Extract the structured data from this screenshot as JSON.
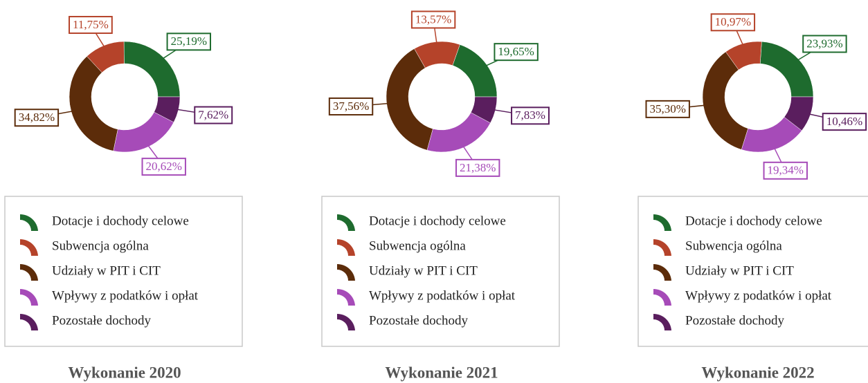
{
  "chart_data": [
    {
      "type": "donut",
      "title": "Wykonanie 2020",
      "categories": [
        "Dotacje i dochody celowe",
        "Subwencja ogólna",
        "Udziały w PIT i CIT",
        "Wpływy z podatków i opłat",
        "Pozostałe dochody"
      ],
      "values": [
        25.19,
        11.75,
        34.82,
        20.62,
        7.62
      ],
      "value_labels": [
        "25,19%",
        "11,75%",
        "34,82%",
        "20,62%",
        "7,62%"
      ],
      "colors": [
        "#1e6b2e",
        "#b5432a",
        "#5c2c0a",
        "#a64bb8",
        "#5a1e5e"
      ]
    },
    {
      "type": "donut",
      "title": "Wykonanie 2021",
      "categories": [
        "Dotacje i dochody celowe",
        "Subwencja ogólna",
        "Udziały w PIT i CIT",
        "Wpływy z podatków i opłat",
        "Pozostałe dochody"
      ],
      "values": [
        19.65,
        13.57,
        37.56,
        21.38,
        7.83
      ],
      "value_labels": [
        "19,65%",
        "13,57%",
        "37,56%",
        "21,38%",
        "7,83%"
      ],
      "colors": [
        "#1e6b2e",
        "#b5432a",
        "#5c2c0a",
        "#a64bb8",
        "#5a1e5e"
      ]
    },
    {
      "type": "donut",
      "title": "Wykonanie 2022",
      "categories": [
        "Dotacje i dochody celowe",
        "Subwencja ogólna",
        "Udziały w PIT i CIT",
        "Wpływy z podatków i opłat",
        "Pozostałe dochody"
      ],
      "values": [
        23.93,
        10.97,
        35.3,
        19.34,
        10.46
      ],
      "value_labels": [
        "23,93%",
        "10,97%",
        "35,30%",
        "19,34%",
        "10,46%"
      ],
      "colors": [
        "#1e6b2e",
        "#b5432a",
        "#5c2c0a",
        "#a64bb8",
        "#5a1e5e"
      ]
    }
  ]
}
